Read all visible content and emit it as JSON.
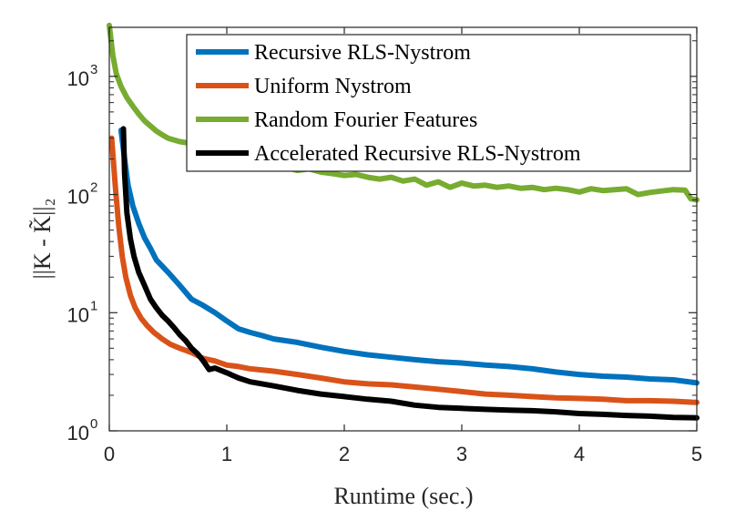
{
  "chart_data": {
    "type": "line",
    "title": "",
    "xlabel": "Runtime (sec.)",
    "ylabel": "||K - K̃||₂",
    "xlim": [
      0,
      5
    ],
    "ylim": [
      1,
      2600
    ],
    "yscale": "log",
    "x_ticks": [
      "0",
      "1",
      "2",
      "3",
      "4",
      "5"
    ],
    "y_ticks": [
      {
        "base": "10",
        "exp": "0",
        "value": 1
      },
      {
        "base": "10",
        "exp": "1",
        "value": 10
      },
      {
        "base": "10",
        "exp": "2",
        "value": 100
      },
      {
        "base": "10",
        "exp": "3",
        "value": 1000
      }
    ],
    "grid": false,
    "legend_position": "top-right",
    "series": [
      {
        "name": "Recursive RLS-Nystrom",
        "color": "#0072BD",
        "points": [
          [
            0.1,
            350
          ],
          [
            0.13,
            200
          ],
          [
            0.16,
            120
          ],
          [
            0.2,
            80
          ],
          [
            0.25,
            57
          ],
          [
            0.3,
            43
          ],
          [
            0.35,
            35
          ],
          [
            0.4,
            28
          ],
          [
            0.5,
            22
          ],
          [
            0.6,
            17
          ],
          [
            0.7,
            13
          ],
          [
            0.8,
            11.5
          ],
          [
            0.9,
            10
          ],
          [
            1.0,
            8.5
          ],
          [
            1.1,
            7.3
          ],
          [
            1.2,
            6.8
          ],
          [
            1.3,
            6.4
          ],
          [
            1.4,
            6.0
          ],
          [
            1.6,
            5.6
          ],
          [
            1.8,
            5.1
          ],
          [
            2.0,
            4.7
          ],
          [
            2.2,
            4.4
          ],
          [
            2.4,
            4.2
          ],
          [
            2.6,
            4.0
          ],
          [
            2.8,
            3.85
          ],
          [
            3.0,
            3.75
          ],
          [
            3.2,
            3.6
          ],
          [
            3.4,
            3.5
          ],
          [
            3.6,
            3.35
          ],
          [
            3.8,
            3.15
          ],
          [
            4.0,
            3.0
          ],
          [
            4.2,
            2.9
          ],
          [
            4.4,
            2.85
          ],
          [
            4.6,
            2.75
          ],
          [
            4.8,
            2.7
          ],
          [
            5.0,
            2.55
          ]
        ]
      },
      {
        "name": "Uniform Nystrom",
        "color": "#D95319",
        "points": [
          [
            0.02,
            300
          ],
          [
            0.05,
            120
          ],
          [
            0.08,
            55
          ],
          [
            0.11,
            30
          ],
          [
            0.14,
            20
          ],
          [
            0.18,
            14
          ],
          [
            0.22,
            11
          ],
          [
            0.27,
            9
          ],
          [
            0.32,
            7.8
          ],
          [
            0.38,
            6.8
          ],
          [
            0.45,
            6.0
          ],
          [
            0.52,
            5.4
          ],
          [
            0.6,
            5.0
          ],
          [
            0.7,
            4.6
          ],
          [
            0.8,
            4.1
          ],
          [
            0.9,
            3.9
          ],
          [
            1.0,
            3.6
          ],
          [
            1.1,
            3.5
          ],
          [
            1.2,
            3.35
          ],
          [
            1.4,
            3.2
          ],
          [
            1.6,
            3.0
          ],
          [
            1.8,
            2.8
          ],
          [
            2.0,
            2.6
          ],
          [
            2.2,
            2.5
          ],
          [
            2.4,
            2.45
          ],
          [
            2.6,
            2.35
          ],
          [
            2.8,
            2.25
          ],
          [
            3.0,
            2.15
          ],
          [
            3.2,
            2.05
          ],
          [
            3.4,
            2.0
          ],
          [
            3.6,
            1.95
          ],
          [
            3.8,
            1.9
          ],
          [
            4.0,
            1.88
          ],
          [
            4.2,
            1.85
          ],
          [
            4.4,
            1.8
          ],
          [
            4.6,
            1.8
          ],
          [
            4.8,
            1.78
          ],
          [
            5.0,
            1.74
          ]
        ]
      },
      {
        "name": "Random Fourier Features",
        "color": "#77AC30",
        "points": [
          [
            0.0,
            2700
          ],
          [
            0.03,
            1500
          ],
          [
            0.06,
            1050
          ],
          [
            0.1,
            820
          ],
          [
            0.15,
            660
          ],
          [
            0.2,
            560
          ],
          [
            0.25,
            480
          ],
          [
            0.3,
            420
          ],
          [
            0.35,
            380
          ],
          [
            0.4,
            345
          ],
          [
            0.45,
            320
          ],
          [
            0.5,
            300
          ],
          [
            0.6,
            280
          ],
          [
            0.7,
            270
          ],
          [
            0.8,
            255
          ],
          [
            0.9,
            240
          ],
          [
            1.0,
            230
          ],
          [
            1.1,
            220
          ],
          [
            1.2,
            205
          ],
          [
            1.3,
            190
          ],
          [
            1.4,
            180
          ],
          [
            1.5,
            170
          ],
          [
            1.6,
            160
          ],
          [
            1.7,
            165
          ],
          [
            1.8,
            155
          ],
          [
            1.9,
            150
          ],
          [
            2.0,
            145
          ],
          [
            2.1,
            148
          ],
          [
            2.2,
            140
          ],
          [
            2.3,
            135
          ],
          [
            2.4,
            140
          ],
          [
            2.5,
            130
          ],
          [
            2.6,
            135
          ],
          [
            2.7,
            120
          ],
          [
            2.8,
            128
          ],
          [
            2.9,
            115
          ],
          [
            3.0,
            125
          ],
          [
            3.1,
            118
          ],
          [
            3.2,
            120
          ],
          [
            3.3,
            115
          ],
          [
            3.4,
            118
          ],
          [
            3.5,
            113
          ],
          [
            3.6,
            115
          ],
          [
            3.7,
            110
          ],
          [
            3.8,
            113
          ],
          [
            3.9,
            110
          ],
          [
            4.0,
            105
          ],
          [
            4.1,
            112
          ],
          [
            4.2,
            108
          ],
          [
            4.3,
            110
          ],
          [
            4.4,
            112
          ],
          [
            4.5,
            100
          ],
          [
            4.6,
            104
          ],
          [
            4.7,
            107
          ],
          [
            4.8,
            110
          ],
          [
            4.9,
            109
          ],
          [
            4.95,
            92
          ],
          [
            5.0,
            90
          ]
        ]
      },
      {
        "name": "Accelerated Recursive RLS-Nystrom",
        "color": "#000000",
        "points": [
          [
            0.12,
            360
          ],
          [
            0.13,
            150
          ],
          [
            0.15,
            70
          ],
          [
            0.18,
            42
          ],
          [
            0.21,
            30
          ],
          [
            0.25,
            22
          ],
          [
            0.3,
            17
          ],
          [
            0.35,
            13
          ],
          [
            0.4,
            11
          ],
          [
            0.45,
            9.5
          ],
          [
            0.5,
            8.5
          ],
          [
            0.55,
            7.5
          ],
          [
            0.6,
            6.5
          ],
          [
            0.65,
            5.8
          ],
          [
            0.7,
            5.0
          ],
          [
            0.75,
            4.5
          ],
          [
            0.8,
            3.9
          ],
          [
            0.85,
            3.3
          ],
          [
            0.9,
            3.4
          ],
          [
            1.0,
            3.1
          ],
          [
            1.1,
            2.8
          ],
          [
            1.2,
            2.6
          ],
          [
            1.3,
            2.5
          ],
          [
            1.4,
            2.4
          ],
          [
            1.6,
            2.2
          ],
          [
            1.8,
            2.05
          ],
          [
            2.0,
            1.95
          ],
          [
            2.2,
            1.85
          ],
          [
            2.4,
            1.78
          ],
          [
            2.6,
            1.65
          ],
          [
            2.8,
            1.58
          ],
          [
            3.0,
            1.55
          ],
          [
            3.2,
            1.52
          ],
          [
            3.4,
            1.5
          ],
          [
            3.6,
            1.48
          ],
          [
            3.8,
            1.45
          ],
          [
            4.0,
            1.4
          ],
          [
            4.2,
            1.38
          ],
          [
            4.4,
            1.35
          ],
          [
            4.6,
            1.33
          ],
          [
            4.8,
            1.3
          ],
          [
            5.0,
            1.29
          ]
        ]
      }
    ]
  }
}
